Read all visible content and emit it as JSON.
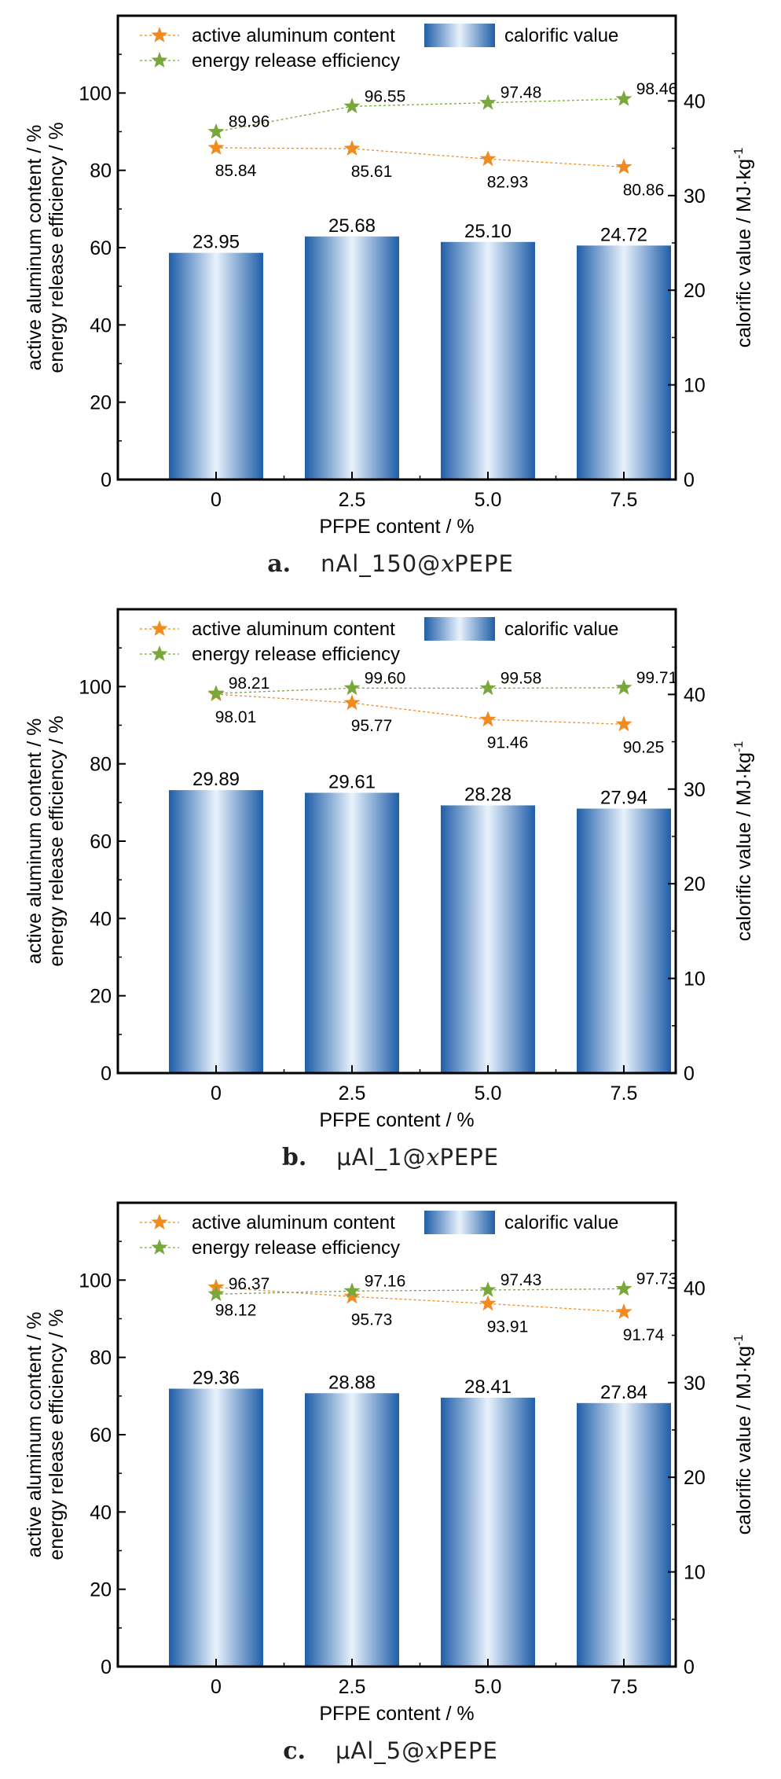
{
  "colors": {
    "bar_dark": "#1f5ea8",
    "bar_light": "#e8f2fc",
    "aluminum": "#f18a1f",
    "efficiency": "#78a83c",
    "axis": "#000000"
  },
  "chart_data": [
    {
      "type": "bar",
      "panel": "a",
      "caption": {
        "letter": "a.",
        "pre": "nAl_150@",
        "var": "x",
        "post": "PEPE"
      },
      "categories": [
        "0",
        "2.5",
        "5.0",
        "7.5"
      ],
      "xlabel": "PFPE content / %",
      "ylabel_line1": "active aluminum content / %",
      "ylabel_line2": "energy release efficiency / %",
      "y2label": "calorific value / MJ·kg",
      "y2label_sup": "-1",
      "ylim": [
        0,
        120
      ],
      "y2lim": [
        0,
        49
      ],
      "yticks": [
        "0",
        "20",
        "40",
        "60",
        "80",
        "100"
      ],
      "y2ticks": [
        "0",
        "10",
        "20",
        "30",
        "40"
      ],
      "legend": [
        "active aluminum content",
        "energy release efficiency",
        "calorific value"
      ],
      "bars": {
        "name": "calorific value",
        "values": [
          23.95,
          25.68,
          25.1,
          24.72
        ],
        "labels": [
          "23.95",
          "25.68",
          "25.10",
          "24.72"
        ]
      },
      "aluminum": {
        "name": "active aluminum content",
        "values": [
          85.84,
          85.61,
          82.93,
          80.86
        ],
        "labels": [
          "85.84",
          "85.61",
          "82.93",
          "80.86"
        ]
      },
      "efficiency": {
        "name": "energy release efficiency",
        "values": [
          89.96,
          96.55,
          97.48,
          98.46
        ],
        "labels": [
          "89.96",
          "96.55",
          "97.48",
          "98.46"
        ]
      }
    },
    {
      "type": "bar",
      "panel": "b",
      "caption": {
        "letter": "b.",
        "pre": "μAl_1@",
        "var": "x",
        "post": "PEPE"
      },
      "categories": [
        "0",
        "2.5",
        "5.0",
        "7.5"
      ],
      "xlabel": "PFPE content / %",
      "ylabel_line1": "active aluminum content / %",
      "ylabel_line2": "energy release efficiency / %",
      "y2label": "calorific value / MJ·kg",
      "y2label_sup": "-1",
      "ylim": [
        0,
        120
      ],
      "y2lim": [
        0,
        49
      ],
      "yticks": [
        "0",
        "20",
        "40",
        "60",
        "80",
        "100"
      ],
      "y2ticks": [
        "0",
        "10",
        "20",
        "30",
        "40"
      ],
      "legend": [
        "active aluminum content",
        "energy release efficiency",
        "calorific value"
      ],
      "bars": {
        "name": "calorific value",
        "values": [
          29.89,
          29.61,
          28.28,
          27.94
        ],
        "labels": [
          "29.89",
          "29.61",
          "28.28",
          "27.94"
        ]
      },
      "aluminum": {
        "name": "active aluminum content",
        "values": [
          98.01,
          95.77,
          91.46,
          90.25
        ],
        "labels": [
          "98.01",
          "95.77",
          "91.46",
          "90.25"
        ]
      },
      "efficiency": {
        "name": "energy release efficiency",
        "values": [
          98.21,
          99.6,
          99.58,
          99.71
        ],
        "labels": [
          "98.21",
          "99.60",
          "99.58",
          "99.71"
        ]
      }
    },
    {
      "type": "bar",
      "panel": "c",
      "caption": {
        "letter": "c.",
        "pre": "μAl_5@",
        "var": "x",
        "post": "PEPE"
      },
      "categories": [
        "0",
        "2.5",
        "5.0",
        "7.5"
      ],
      "xlabel": "PFPE content / %",
      "ylabel_line1": "active aluminum content / %",
      "ylabel_line2": "energy release efficiency / %",
      "y2label": "calorific value / MJ·kg",
      "y2label_sup": "-1",
      "ylim": [
        0,
        120
      ],
      "y2lim": [
        0,
        49
      ],
      "yticks": [
        "0",
        "20",
        "40",
        "60",
        "80",
        "100"
      ],
      "y2ticks": [
        "0",
        "10",
        "20",
        "30",
        "40"
      ],
      "legend": [
        "active aluminum content",
        "energy release efficiency",
        "calorific value"
      ],
      "bars": {
        "name": "calorific value",
        "values": [
          29.36,
          28.88,
          28.41,
          27.84
        ],
        "labels": [
          "29.36",
          "28.88",
          "28.41",
          "27.84"
        ]
      },
      "aluminum": {
        "name": "active aluminum content",
        "values": [
          98.12,
          95.73,
          93.91,
          91.74
        ],
        "labels": [
          "98.12",
          "95.73",
          "93.91",
          "91.74"
        ]
      },
      "efficiency": {
        "name": "energy release efficiency",
        "values": [
          96.37,
          97.16,
          97.43,
          97.73
        ],
        "labels": [
          "96.37",
          "97.16",
          "97.43",
          "97.73"
        ]
      }
    }
  ]
}
